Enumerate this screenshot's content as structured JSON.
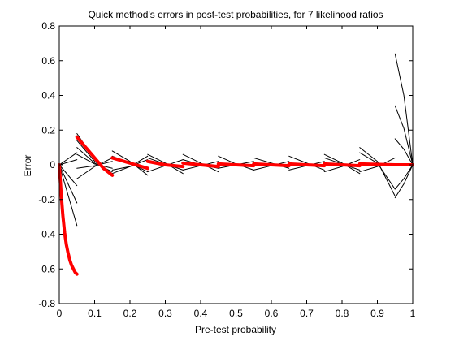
{
  "chart_data": {
    "type": "line",
    "title": "Quick method's errors in post-test probabilities, for 7 likelihood ratios",
    "xlabel": "Pre-test probability",
    "ylabel": "Error",
    "xlim": [
      0,
      1
    ],
    "ylim": [
      -0.8,
      0.8
    ],
    "xticks": [
      0,
      0.1,
      0.2,
      0.3,
      0.4,
      0.5,
      0.6,
      0.7,
      0.8,
      0.9,
      1
    ],
    "xtick_labels": [
      "0",
      "0.1",
      "0.2",
      "0.3",
      "0.4",
      "0.5",
      "0.6",
      "0.7",
      "0.8",
      "0.9",
      "1"
    ],
    "yticks": [
      -0.8,
      -0.6,
      -0.4,
      -0.2,
      0,
      0.2,
      0.4,
      0.6,
      0.8
    ],
    "ytick_labels": [
      "-0.8",
      "-0.6",
      "-0.4",
      "-0.2",
      "0",
      "0.2",
      "0.4",
      "0.6",
      "0.8"
    ],
    "grid": false,
    "colors": {
      "thin": "#000000",
      "thick": "#ff0000",
      "axes": "#000000"
    },
    "series": [
      {
        "style": "thick",
        "segments": [
          [
            [
              0.0,
              0.0
            ],
            [
              0.005,
              -0.16
            ],
            [
              0.01,
              -0.29
            ],
            [
              0.015,
              -0.39
            ],
            [
              0.02,
              -0.46
            ],
            [
              0.025,
              -0.51
            ],
            [
              0.03,
              -0.55
            ],
            [
              0.035,
              -0.58
            ],
            [
              0.04,
              -0.6
            ],
            [
              0.045,
              -0.62
            ],
            [
              0.05,
              -0.63
            ]
          ],
          [
            [
              0.05,
              0.16
            ],
            [
              0.075,
              0.1
            ],
            [
              0.1,
              0.04
            ],
            [
              0.125,
              -0.02
            ],
            [
              0.15,
              -0.06
            ]
          ],
          [
            [
              0.15,
              0.04
            ],
            [
              0.2,
              0.01
            ],
            [
              0.25,
              -0.02
            ]
          ],
          [
            [
              0.25,
              0.02
            ],
            [
              0.3,
              0.0
            ],
            [
              0.35,
              -0.01
            ]
          ],
          [
            [
              0.35,
              0.01
            ],
            [
              0.4,
              0.0
            ],
            [
              0.45,
              -0.01
            ]
          ],
          [
            [
              0.45,
              0.005
            ],
            [
              0.55,
              -0.005
            ]
          ],
          [
            [
              0.55,
              0.005
            ],
            [
              0.65,
              -0.005
            ]
          ],
          [
            [
              0.65,
              0.005
            ],
            [
              0.75,
              -0.005
            ]
          ],
          [
            [
              0.75,
              0.005
            ],
            [
              0.85,
              -0.005
            ]
          ],
          [
            [
              0.85,
              0.005
            ],
            [
              0.95,
              0.0
            ]
          ],
          [
            [
              0.95,
              0.0
            ],
            [
              1.0,
              0.0
            ]
          ]
        ]
      },
      {
        "style": "thin",
        "segments": [
          [
            [
              0.05,
              0.18
            ],
            [
              0.1,
              0.03
            ],
            [
              0.15,
              -0.06
            ]
          ],
          [
            [
              0.05,
              0.14
            ],
            [
              0.1,
              0.02
            ],
            [
              0.15,
              -0.05
            ]
          ],
          [
            [
              0.05,
              0.1
            ],
            [
              0.1,
              0.01
            ],
            [
              0.15,
              -0.04
            ]
          ],
          [
            [
              0.05,
              0.06
            ],
            [
              0.1,
              0.005
            ],
            [
              0.15,
              -0.02
            ]
          ],
          [
            [
              0.05,
              -0.02
            ],
            [
              0.1,
              -0.005
            ],
            [
              0.15,
              0.02
            ]
          ],
          [
            [
              0.05,
              -0.08
            ],
            [
              0.1,
              -0.01
            ],
            [
              0.15,
              0.04
            ]
          ],
          [
            [
              0.0,
              0.0
            ],
            [
              0.05,
              -0.35
            ]
          ],
          [
            [
              0.0,
              0.0
            ],
            [
              0.05,
              -0.22
            ]
          ],
          [
            [
              0.0,
              0.0
            ],
            [
              0.05,
              -0.12
            ]
          ],
          [
            [
              0.0,
              0.0
            ],
            [
              0.05,
              0.03
            ]
          ],
          [
            [
              0.0,
              0.0
            ],
            [
              0.05,
              0.07
            ]
          ],
          [
            [
              0.15,
              0.08
            ],
            [
              0.2,
              0.02
            ],
            [
              0.25,
              -0.06
            ]
          ],
          [
            [
              0.15,
              0.05
            ],
            [
              0.2,
              0.01
            ],
            [
              0.25,
              -0.04
            ]
          ],
          [
            [
              0.15,
              -0.03
            ],
            [
              0.2,
              -0.01
            ],
            [
              0.25,
              0.03
            ]
          ],
          [
            [
              0.15,
              -0.05
            ],
            [
              0.2,
              -0.01
            ],
            [
              0.25,
              0.05
            ]
          ],
          [
            [
              0.25,
              0.06
            ],
            [
              0.3,
              0.01
            ],
            [
              0.35,
              -0.05
            ]
          ],
          [
            [
              0.25,
              0.04
            ],
            [
              0.3,
              0.005
            ],
            [
              0.35,
              -0.03
            ]
          ],
          [
            [
              0.25,
              -0.04
            ],
            [
              0.3,
              -0.005
            ],
            [
              0.35,
              0.03
            ]
          ],
          [
            [
              0.35,
              0.06
            ],
            [
              0.4,
              0.01
            ],
            [
              0.45,
              -0.04
            ]
          ],
          [
            [
              0.35,
              0.03
            ],
            [
              0.4,
              0.0
            ],
            [
              0.45,
              -0.02
            ]
          ],
          [
            [
              0.35,
              -0.03
            ],
            [
              0.4,
              -0.005
            ],
            [
              0.45,
              0.02
            ]
          ],
          [
            [
              0.45,
              0.05
            ],
            [
              0.5,
              0.005
            ],
            [
              0.55,
              -0.03
            ]
          ],
          [
            [
              0.45,
              -0.02
            ],
            [
              0.5,
              0.0
            ],
            [
              0.55,
              0.02
            ]
          ],
          [
            [
              0.55,
              0.04
            ],
            [
              0.6,
              0.01
            ],
            [
              0.65,
              -0.02
            ]
          ],
          [
            [
              0.55,
              -0.03
            ],
            [
              0.6,
              -0.005
            ],
            [
              0.65,
              0.02
            ]
          ],
          [
            [
              0.65,
              0.05
            ],
            [
              0.7,
              0.01
            ],
            [
              0.75,
              -0.03
            ]
          ],
          [
            [
              0.65,
              -0.03
            ],
            [
              0.7,
              -0.005
            ],
            [
              0.75,
              0.02
            ]
          ],
          [
            [
              0.75,
              0.06
            ],
            [
              0.8,
              0.01
            ],
            [
              0.85,
              -0.05
            ]
          ],
          [
            [
              0.75,
              0.04
            ],
            [
              0.8,
              0.005
            ],
            [
              0.85,
              -0.03
            ]
          ],
          [
            [
              0.75,
              -0.04
            ],
            [
              0.8,
              -0.01
            ],
            [
              0.85,
              0.03
            ]
          ],
          [
            [
              0.85,
              0.1
            ],
            [
              0.9,
              0.02
            ],
            [
              0.95,
              -0.18
            ]
          ],
          [
            [
              0.85,
              0.07
            ],
            [
              0.9,
              0.01
            ],
            [
              0.95,
              -0.14
            ]
          ],
          [
            [
              0.85,
              -0.04
            ],
            [
              0.9,
              -0.01
            ],
            [
              0.95,
              0.04
            ]
          ],
          [
            [
              0.95,
              0.64
            ],
            [
              0.975,
              0.4
            ],
            [
              1.0,
              0.0
            ]
          ],
          [
            [
              0.95,
              0.34
            ],
            [
              0.975,
              0.21
            ],
            [
              1.0,
              0.0
            ]
          ],
          [
            [
              0.95,
              0.15
            ],
            [
              0.975,
              0.09
            ],
            [
              1.0,
              0.0
            ]
          ],
          [
            [
              0.95,
              -0.14
            ],
            [
              0.975,
              -0.08
            ],
            [
              1.0,
              0.0
            ]
          ],
          [
            [
              0.95,
              -0.19
            ],
            [
              0.975,
              -0.11
            ],
            [
              1.0,
              0.0
            ]
          ]
        ]
      }
    ]
  }
}
